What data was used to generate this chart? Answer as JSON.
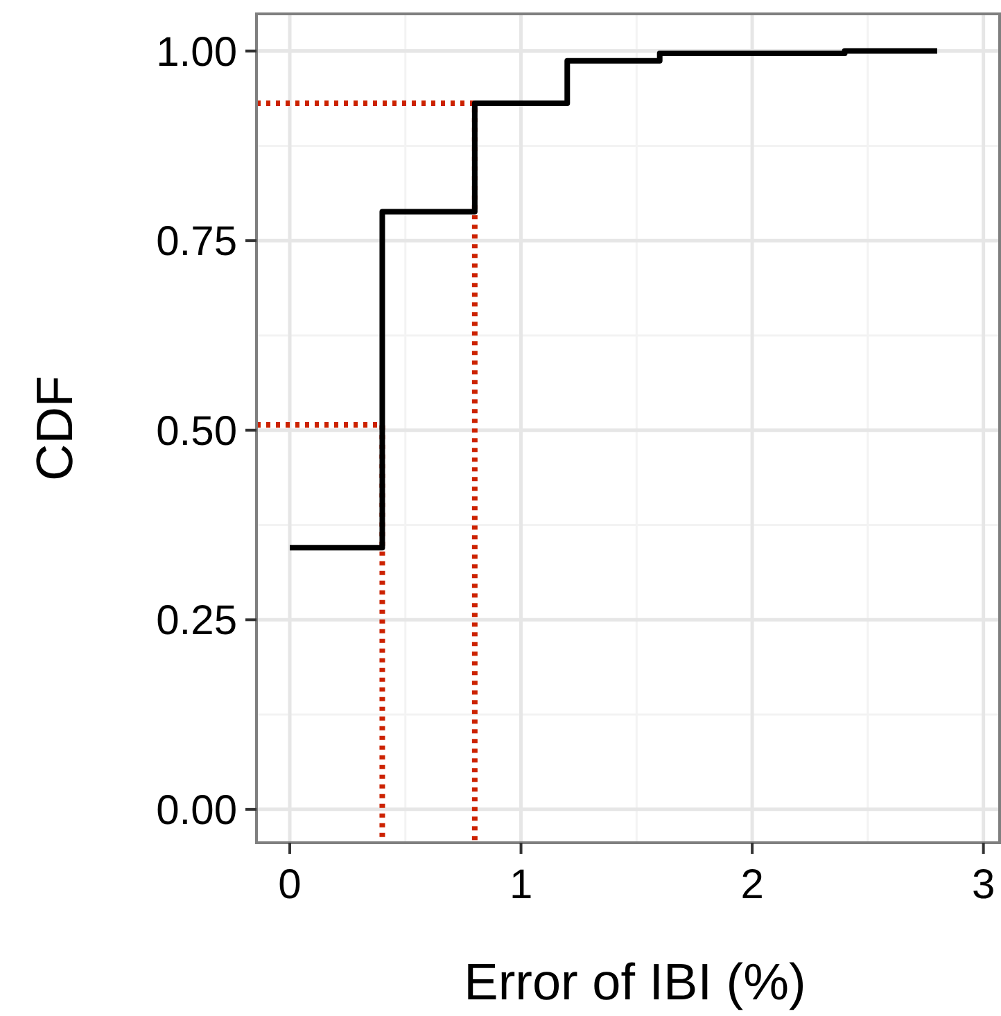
{
  "chart_data": {
    "type": "step",
    "xlabel": "Error of IBI (%)",
    "ylabel": "CDF",
    "xlim": [
      -0.144,
      3.07
    ],
    "ylim": [
      -0.044,
      1.049
    ],
    "xticks": [
      0,
      1,
      2,
      3
    ],
    "yticks": [
      {
        "value": 0,
        "label": "0.00"
      },
      {
        "value": 0.25,
        "label": "0.25"
      },
      {
        "value": 0.5,
        "label": "0.50"
      },
      {
        "value": 0.75,
        "label": "0.75"
      },
      {
        "value": 1,
        "label": "1.00"
      }
    ],
    "grid": true,
    "series": [
      {
        "color": "#000000",
        "x": [
          0,
          0.4,
          0.8,
          1.2,
          1.6,
          2.4,
          2.8
        ],
        "values": [
          0.345,
          0.788,
          0.931,
          0.987,
          0.997,
          1.0,
          1.0
        ],
        "line_style": "solid"
      },
      {
        "type": "line",
        "color": "#cc2200",
        "x": [
          -0.144,
          0.4,
          0.4
        ],
        "values": [
          0.507,
          0.507,
          -0.044
        ],
        "line_style": "dotted"
      },
      {
        "type": "line",
        "color": "#cc2200",
        "x": [
          -0.144,
          0.8,
          0.8
        ],
        "values": [
          0.931,
          0.931,
          -0.044
        ],
        "line_style": "dotted"
      }
    ]
  }
}
